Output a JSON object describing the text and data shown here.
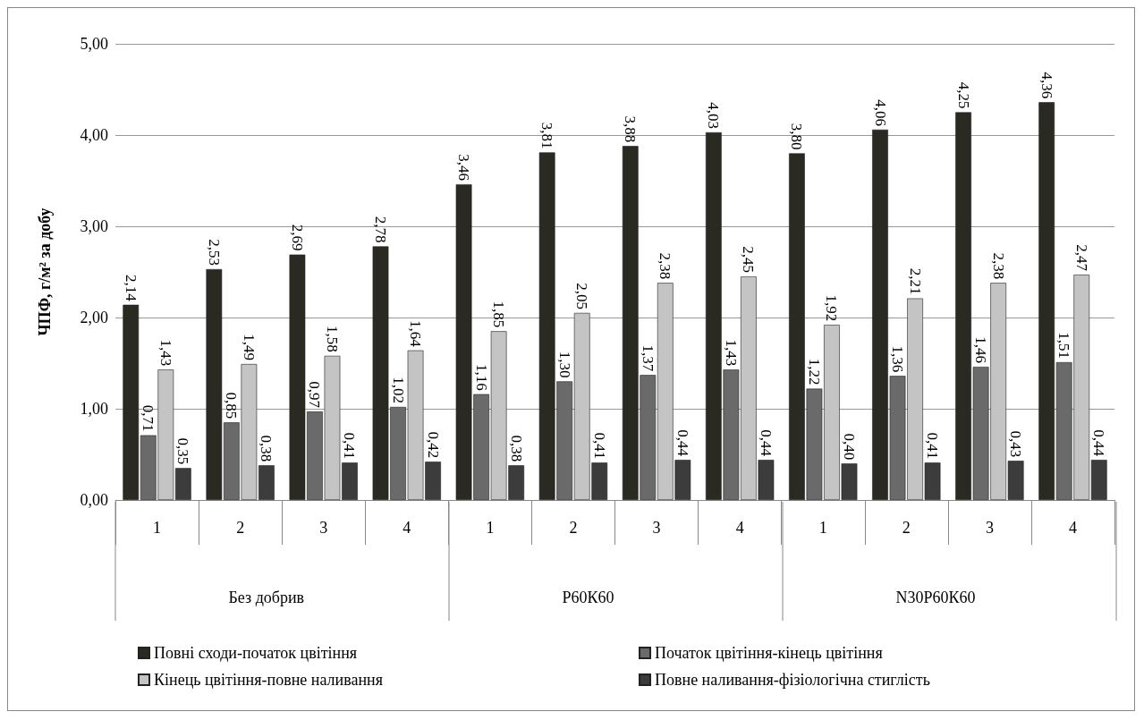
{
  "chart_data": {
    "type": "bar",
    "ylabel": "ЧПФ, г/м² за добу",
    "categories": [
      "1",
      "2",
      "3",
      "4",
      "1",
      "2",
      "3",
      "4",
      "1",
      "2",
      "3",
      "4"
    ],
    "annotations": [
      "Без добрив",
      "Р60К60",
      "N30Р60К60"
    ],
    "series": [
      {
        "name": "Повні сходи-початок цвітіння",
        "color": "#2a2a22",
        "values": [
          2.14,
          2.53,
          2.69,
          2.78,
          3.46,
          3.81,
          3.88,
          4.03,
          3.8,
          4.06,
          4.25,
          4.36
        ],
        "value_labels": [
          "2,14",
          "2,53",
          "2,69",
          "2,78",
          "3,46",
          "3,81",
          "3,88",
          "4,03",
          "3,80",
          "4,06",
          "4,25",
          "4,36"
        ]
      },
      {
        "name": "Початок цвітіння-кінець цвітіння",
        "color": "#6a6a6a",
        "values": [
          0.71,
          0.85,
          0.97,
          1.02,
          1.16,
          1.3,
          1.37,
          1.43,
          1.22,
          1.36,
          1.46,
          1.51
        ],
        "value_labels": [
          "0,71",
          "0,85",
          "0,97",
          "1,02",
          "1,16",
          "1,30",
          "1,37",
          "1,43",
          "1,22",
          "1,36",
          "1,46",
          "1,51"
        ]
      },
      {
        "name": "Кінець цвітіння-повне наливання",
        "color": "#c4c4c4",
        "values": [
          1.43,
          1.49,
          1.58,
          1.64,
          1.85,
          2.05,
          2.38,
          2.45,
          1.92,
          2.21,
          2.38,
          2.47
        ],
        "value_labels": [
          "1,43",
          "1,49",
          "1,58",
          "1,64",
          "1,85",
          "2,05",
          "2,38",
          "2,45",
          "1,92",
          "2,21",
          "2,38",
          "2,47"
        ]
      },
      {
        "name": "Повне наливання-фізіологічна стиглість",
        "color": "#3c3c3c",
        "values": [
          0.35,
          0.38,
          0.41,
          0.42,
          0.38,
          0.41,
          0.44,
          0.44,
          0.4,
          0.41,
          0.43,
          0.44
        ],
        "value_labels": [
          "0,35",
          "0,38",
          "0,41",
          "0,42",
          "0,38",
          "0,41",
          "0,44",
          "0,44",
          "0,40",
          "0,41",
          "0,43",
          "0,44"
        ]
      }
    ],
    "ylim": [
      0,
      5
    ],
    "yticks": [
      {
        "value": 0,
        "label": "0,00"
      },
      {
        "value": 1,
        "label": "1,00"
      },
      {
        "value": 2,
        "label": "2,00"
      },
      {
        "value": 3,
        "label": "3,00"
      },
      {
        "value": 4,
        "label": "4,00"
      },
      {
        "value": 5,
        "label": "5,00"
      }
    ],
    "grid": "y",
    "legend": "bottom"
  }
}
